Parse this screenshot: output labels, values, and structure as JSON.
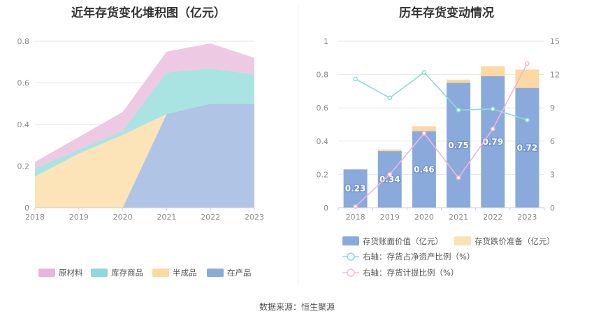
{
  "left": {
    "title": "近年存货变化堆积图（亿元）",
    "legend": [
      {
        "name": "原材料",
        "color": "#e8b4d8"
      },
      {
        "name": "库存商品",
        "color": "#8fdad8"
      },
      {
        "name": "半成品",
        "color": "#fbd9a0"
      },
      {
        "name": "在产品",
        "color": "#8aaadc"
      }
    ]
  },
  "right": {
    "title": "历年存货变动情况",
    "legend": [
      {
        "name": "存货账面价值（亿元）",
        "color": "#8aaadc"
      },
      {
        "name": "存货跌价准备（亿元）",
        "color": "#fde0b4"
      },
      {
        "name": "右轴：存货占净资产比例（%）",
        "color": "#8fdad8"
      },
      {
        "name": "右轴：存货计提比例（%）",
        "color": "#f0bedc"
      }
    ]
  },
  "source": "数据来源：恒生聚源",
  "chart_data": [
    {
      "type": "area",
      "title": "近年存货变化堆积图（亿元）",
      "stacked": true,
      "x": [
        "2018",
        "2019",
        "2020",
        "2021",
        "2022",
        "2023"
      ],
      "ylim": [
        0,
        0.8
      ],
      "yticks": [
        "0",
        "0.2",
        "0.4",
        "0.6",
        "0.8"
      ],
      "grid": true,
      "legend_position": "bottom",
      "series": [
        {
          "name": "在产品",
          "color": "#b0c4e6",
          "values": [
            0,
            0,
            0,
            0.45,
            0.5,
            0.5
          ]
        },
        {
          "name": "半成品",
          "color": "#fde3b8",
          "values": [
            0.15,
            0.26,
            0.35,
            0,
            0,
            0
          ]
        },
        {
          "name": "库存商品",
          "color": "#a9e3e2",
          "values": [
            0.04,
            0.02,
            0.02,
            0.2,
            0.17,
            0.14
          ]
        },
        {
          "name": "原材料",
          "color": "#edc9e3",
          "values": [
            0.03,
            0.06,
            0.09,
            0.1,
            0.12,
            0.08
          ]
        }
      ]
    },
    {
      "type": "bar",
      "title": "历年存货变动情况",
      "stacked": true,
      "categories": [
        "2018",
        "2019",
        "2020",
        "2021",
        "2022",
        "2023"
      ],
      "ylim": [
        0,
        1
      ],
      "yticks": [
        "0",
        "0.2",
        "0.4",
        "0.6",
        "0.8",
        "1"
      ],
      "y2lim": [
        0,
        15
      ],
      "y2ticks": [
        "0",
        "3",
        "6",
        "9",
        "12",
        "15"
      ],
      "grid": true,
      "legend_position": "bottom",
      "series": [
        {
          "name": "存货账面价值（亿元）",
          "type": "bar",
          "color": "#8aaadc",
          "values": [
            0.23,
            0.34,
            0.46,
            0.75,
            0.79,
            0.72
          ],
          "labels": [
            "0.23",
            "0.34",
            "0.46",
            "0.75",
            "0.79",
            "0.72"
          ]
        },
        {
          "name": "存货跌价准备（亿元）",
          "type": "bar",
          "color": "#fcd8a2",
          "values": [
            0,
            0.01,
            0.03,
            0.02,
            0.06,
            0.11
          ]
        },
        {
          "name": "右轴：存货占净资产比例（%）",
          "type": "line",
          "axis": "right",
          "color": "#8fdad8",
          "values": [
            11.6,
            9.9,
            12.2,
            8.8,
            8.9,
            7.9
          ]
        },
        {
          "name": "右轴：存货计提比例（%）",
          "type": "line",
          "axis": "right",
          "color": "#efb6d9",
          "values": [
            0.1,
            3.0,
            6.7,
            2.7,
            7.1,
            13.0
          ]
        }
      ]
    }
  ]
}
